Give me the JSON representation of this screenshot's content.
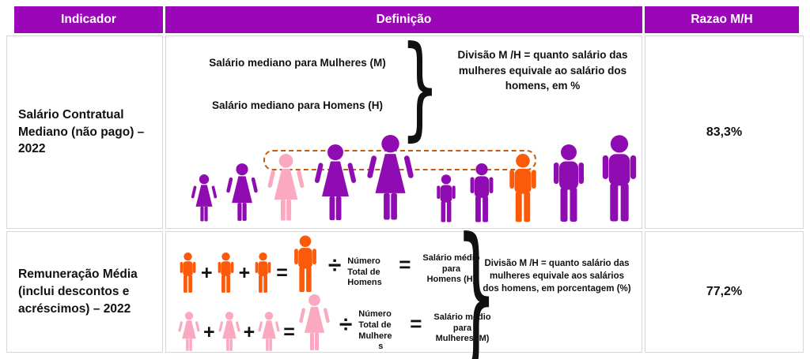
{
  "colors": {
    "header_bg": "#9A06B8",
    "figure_purple": "#8F0CB2",
    "figure_pink": "#FBA9C1",
    "figure_orange": "#FB5A09",
    "dash": "#C55A11",
    "border": "#D6D6D6"
  },
  "glyphs": {
    "brace": "}"
  },
  "operators": {
    "plus": "+",
    "equals": "=",
    "divide": "÷"
  },
  "header": {
    "columns": [
      "Indicador",
      "Definição",
      "Razao M/H"
    ]
  },
  "rows": [
    {
      "indicator": "Salário Contratual Mediano (não pago) – 2022",
      "ratio": "83,3%",
      "definition": {
        "line_women": "Salário mediano para Mulheres (M)",
        "line_men": "Salário mediano para Homens (H)",
        "note": "Divisão M /H = quanto salário das mulheres equivale ao salário dos homens, em %",
        "women_figures": [
          {
            "type": "female",
            "color": "#8F0CB2",
            "h": 62
          },
          {
            "type": "female",
            "color": "#8F0CB2",
            "h": 76
          },
          {
            "type": "female",
            "color": "#FBA9C1",
            "h": 88
          },
          {
            "type": "female",
            "color": "#8F0CB2",
            "h": 100
          },
          {
            "type": "female",
            "color": "#8F0CB2",
            "h": 112
          }
        ],
        "men_figures": [
          {
            "type": "male",
            "color": "#8F0CB2",
            "h": 62
          },
          {
            "type": "male",
            "color": "#8F0CB2",
            "h": 76
          },
          {
            "type": "male",
            "color": "#FB5A09",
            "h": 88
          },
          {
            "type": "male",
            "color": "#8F0CB2",
            "h": 100
          },
          {
            "type": "male",
            "color": "#8F0CB2",
            "h": 112
          }
        ]
      }
    },
    {
      "indicator": "Remuneração Média (inclui descontos e acréscimos) – 2022",
      "ratio": "77,2%",
      "definition": {
        "men_row": {
          "figures": [
            {
              "type": "male",
              "color": "#FB5A09",
              "h": 52
            },
            {
              "op": "plus-sign",
              "glyph": "+"
            },
            {
              "type": "male",
              "color": "#FB5A09",
              "h": 52
            },
            {
              "op": "plus-sign",
              "glyph": "+"
            },
            {
              "type": "male",
              "color": "#FB5A09",
              "h": 52
            },
            {
              "op": "equals-sign",
              "glyph": "="
            },
            {
              "type": "male",
              "color": "#FB5A09",
              "h": 74
            }
          ],
          "divisor_lines": [
            "Número",
            "Total de",
            "Homens"
          ],
          "result_lines": [
            "Salário médio",
            "para",
            "Homens (H)"
          ]
        },
        "women_row": {
          "figures": [
            {
              "type": "female",
              "color": "#FBA9C1",
              "h": 52
            },
            {
              "op": "plus-sign",
              "glyph": "+"
            },
            {
              "type": "female",
              "color": "#FBA9C1",
              "h": 52
            },
            {
              "op": "plus-sign",
              "glyph": "+"
            },
            {
              "type": "female",
              "color": "#FBA9C1",
              "h": 52
            },
            {
              "op": "equals-sign",
              "glyph": "="
            },
            {
              "type": "female",
              "color": "#FBA9C1",
              "h": 74
            }
          ],
          "divisor_lines": [
            "Número",
            "Total de",
            "Mulhere",
            "s"
          ],
          "result_lines": [
            "Salário médio",
            "para",
            "Mulheres (M)"
          ]
        },
        "note": "Divisão M /H = quanto salário das mulheres equivale aos salários dos homens, em porcentagem (%)"
      }
    }
  ]
}
